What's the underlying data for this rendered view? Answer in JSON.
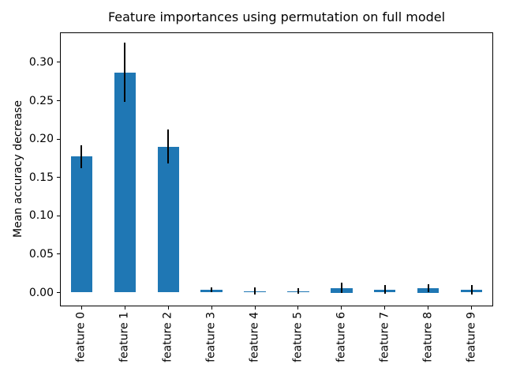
{
  "chart_data": {
    "type": "bar",
    "title": "Feature importances using permutation on full model",
    "ylabel": "Mean accuracy decrease",
    "categories": [
      "feature 0",
      "feature 1",
      "feature 2",
      "feature 3",
      "feature 4",
      "feature 5",
      "feature 6",
      "feature 7",
      "feature 8",
      "feature 9"
    ],
    "series": [
      {
        "name": "mean accuracy decrease",
        "values": [
          0.177,
          0.287,
          0.19,
          0.0035,
          0.002,
          0.002,
          0.006,
          0.004,
          0.0055,
          0.0035
        ],
        "errors": [
          0.015,
          0.039,
          0.022,
          0.003,
          0.005,
          0.004,
          0.007,
          0.006,
          0.005,
          0.006
        ]
      }
    ],
    "yticks": [
      0.0,
      0.05,
      0.1,
      0.15,
      0.2,
      0.25,
      0.3
    ],
    "ytick_labels": [
      "0.00",
      "0.05",
      "0.10",
      "0.15",
      "0.20",
      "0.25",
      "0.30"
    ],
    "ylim": [
      -0.018,
      0.339
    ],
    "xtick_rotation": 90,
    "grid": false,
    "legend_position": "none",
    "colors": {
      "bar": "#1f77b4",
      "error_bar": "#000000",
      "axis": "#000000",
      "background": "#ffffff",
      "text": "#000000"
    }
  }
}
